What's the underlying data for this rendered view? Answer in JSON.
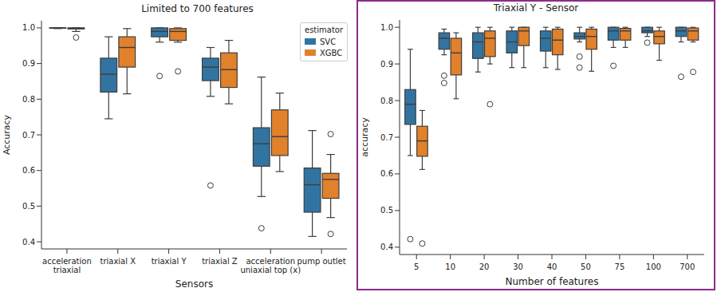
{
  "chart_data": [
    {
      "type": "box",
      "title": "Limited to 700 features",
      "x_label": "Sensors",
      "y_label": "Accuracy",
      "categories": [
        "acceleration triaxial",
        "triaxial X",
        "triaxial Y",
        "triaxial Z",
        "acceleration uniaxial top (x)",
        "pump outlet"
      ],
      "ylim": [
        0.38,
        1.02
      ],
      "yticks": [
        0.4,
        0.5,
        0.6,
        0.7,
        0.8,
        0.9,
        {
          "value": 1.0,
          "label": "1.0"
        }
      ],
      "grid": false,
      "legend": "upper right",
      "legend_title": "estimator",
      "series": [
        {
          "name": "SVC",
          "color": "#3274a1",
          "values": [
            {
              "whisker_low": 0.998,
              "q1": 0.999,
              "median": 1.0,
              "q3": 1.0,
              "whisker_high": 1.0,
              "outliers": []
            },
            {
              "whisker_low": 0.745,
              "q1": 0.82,
              "median": 0.87,
              "q3": 0.915,
              "whisker_high": 0.975,
              "outliers": []
            },
            {
              "whisker_low": 0.96,
              "q1": 0.975,
              "median": 0.99,
              "q3": 1.0,
              "whisker_high": 1.0,
              "outliers": [
                0.865
              ]
            },
            {
              "whisker_low": 0.808,
              "q1": 0.852,
              "median": 0.89,
              "q3": 0.915,
              "whisker_high": 0.945,
              "outliers": [
                0.558
              ]
            },
            {
              "whisker_low": 0.527,
              "q1": 0.612,
              "median": 0.675,
              "q3": 0.72,
              "whisker_high": 0.862,
              "outliers": [
                0.438
              ]
            },
            {
              "whisker_low": 0.415,
              "q1": 0.483,
              "median": 0.56,
              "q3": 0.607,
              "whisker_high": 0.712,
              "outliers": []
            }
          ]
        },
        {
          "name": "XGBC",
          "color": "#e1812c",
          "values": [
            {
              "whisker_low": 0.99,
              "q1": 0.997,
              "median": 0.999,
              "q3": 1.0,
              "whisker_high": 1.0,
              "outliers": [
                0.973
              ]
            },
            {
              "whisker_low": 0.815,
              "q1": 0.89,
              "median": 0.945,
              "q3": 0.975,
              "whisker_high": 0.998,
              "outliers": []
            },
            {
              "whisker_low": 0.96,
              "q1": 0.965,
              "median": 0.99,
              "q3": 0.998,
              "whisker_high": 1.0,
              "outliers": [
                0.878
              ]
            },
            {
              "whisker_low": 0.787,
              "q1": 0.833,
              "median": 0.883,
              "q3": 0.93,
              "whisker_high": 0.965,
              "outliers": []
            },
            {
              "whisker_low": 0.597,
              "q1": 0.642,
              "median": 0.695,
              "q3": 0.77,
              "whisker_high": 0.817,
              "outliers": []
            },
            {
              "whisker_low": 0.468,
              "q1": 0.522,
              "median": 0.575,
              "q3": 0.592,
              "whisker_high": 0.645,
              "outliers": [
                0.702,
                0.422
              ]
            }
          ]
        }
      ]
    },
    {
      "type": "box",
      "title": "Triaxial Y - Sensor",
      "x_label": "Number of features",
      "y_label": "accuracy",
      "categories": [
        "5",
        "10",
        "20",
        "30",
        "40",
        "50",
        "75",
        "100",
        "700"
      ],
      "ylim": [
        0.38,
        1.02
      ],
      "yticks": [
        0.4,
        0.5,
        0.6,
        0.7,
        0.8,
        0.9,
        {
          "value": 1.0,
          "label": "1.0"
        }
      ],
      "grid": false,
      "series": [
        {
          "name": "SVC",
          "color": "#3274a1",
          "values": [
            {
              "whisker_low": 0.65,
              "q1": 0.735,
              "median": 0.79,
              "q3": 0.83,
              "whisker_high": 0.94,
              "outliers": [
                0.422
              ]
            },
            {
              "whisker_low": 0.925,
              "q1": 0.94,
              "median": 0.97,
              "q3": 0.985,
              "whisker_high": 0.995,
              "outliers": [
                0.868,
                0.848
              ]
            },
            {
              "whisker_low": 0.878,
              "q1": 0.915,
              "median": 0.96,
              "q3": 0.985,
              "whisker_high": 1.0,
              "outliers": []
            },
            {
              "whisker_low": 0.89,
              "q1": 0.93,
              "median": 0.96,
              "q3": 0.99,
              "whisker_high": 1.0,
              "outliers": []
            },
            {
              "whisker_low": 0.89,
              "q1": 0.935,
              "median": 0.97,
              "q3": 0.99,
              "whisker_high": 1.0,
              "outliers": []
            },
            {
              "whisker_low": 0.96,
              "q1": 0.968,
              "median": 0.975,
              "q3": 0.985,
              "whisker_high": 1.0,
              "outliers": [
                0.92,
                0.89
              ]
            },
            {
              "whisker_low": 0.945,
              "q1": 0.965,
              "median": 0.99,
              "q3": 1.0,
              "whisker_high": 1.0,
              "outliers": [
                0.895
              ]
            },
            {
              "whisker_low": 0.975,
              "q1": 0.985,
              "median": 0.99,
              "q3": 1.0,
              "whisker_high": 1.0,
              "outliers": [
                0.958
              ]
            },
            {
              "whisker_low": 0.96,
              "q1": 0.975,
              "median": 0.99,
              "q3": 1.0,
              "whisker_high": 1.0,
              "outliers": [
                0.865
              ]
            }
          ]
        },
        {
          "name": "XGBC",
          "color": "#e1812c",
          "values": [
            {
              "whisker_low": 0.612,
              "q1": 0.648,
              "median": 0.69,
              "q3": 0.73,
              "whisker_high": 0.773,
              "outliers": [
                0.41
              ]
            },
            {
              "whisker_low": 0.805,
              "q1": 0.87,
              "median": 0.93,
              "q3": 0.97,
              "whisker_high": 0.985,
              "outliers": []
            },
            {
              "whisker_low": 0.9,
              "q1": 0.92,
              "median": 0.97,
              "q3": 0.99,
              "whisker_high": 1.0,
              "outliers": [
                0.79
              ]
            },
            {
              "whisker_low": 0.89,
              "q1": 0.95,
              "median": 0.99,
              "q3": 1.0,
              "whisker_high": 1.0,
              "outliers": []
            },
            {
              "whisker_low": 0.885,
              "q1": 0.925,
              "median": 0.965,
              "q3": 0.995,
              "whisker_high": 1.0,
              "outliers": []
            },
            {
              "whisker_low": 0.88,
              "q1": 0.94,
              "median": 0.975,
              "q3": 0.995,
              "whisker_high": 1.0,
              "outliers": []
            },
            {
              "whisker_low": 0.945,
              "q1": 0.965,
              "median": 0.99,
              "q3": 0.997,
              "whisker_high": 1.0,
              "outliers": []
            },
            {
              "whisker_low": 0.91,
              "q1": 0.955,
              "median": 0.975,
              "q3": 0.99,
              "whisker_high": 1.0,
              "outliers": []
            },
            {
              "whisker_low": 0.96,
              "q1": 0.965,
              "median": 0.99,
              "q3": 0.998,
              "whisker_high": 1.0,
              "outliers": [
                0.878
              ]
            }
          ]
        }
      ]
    }
  ]
}
